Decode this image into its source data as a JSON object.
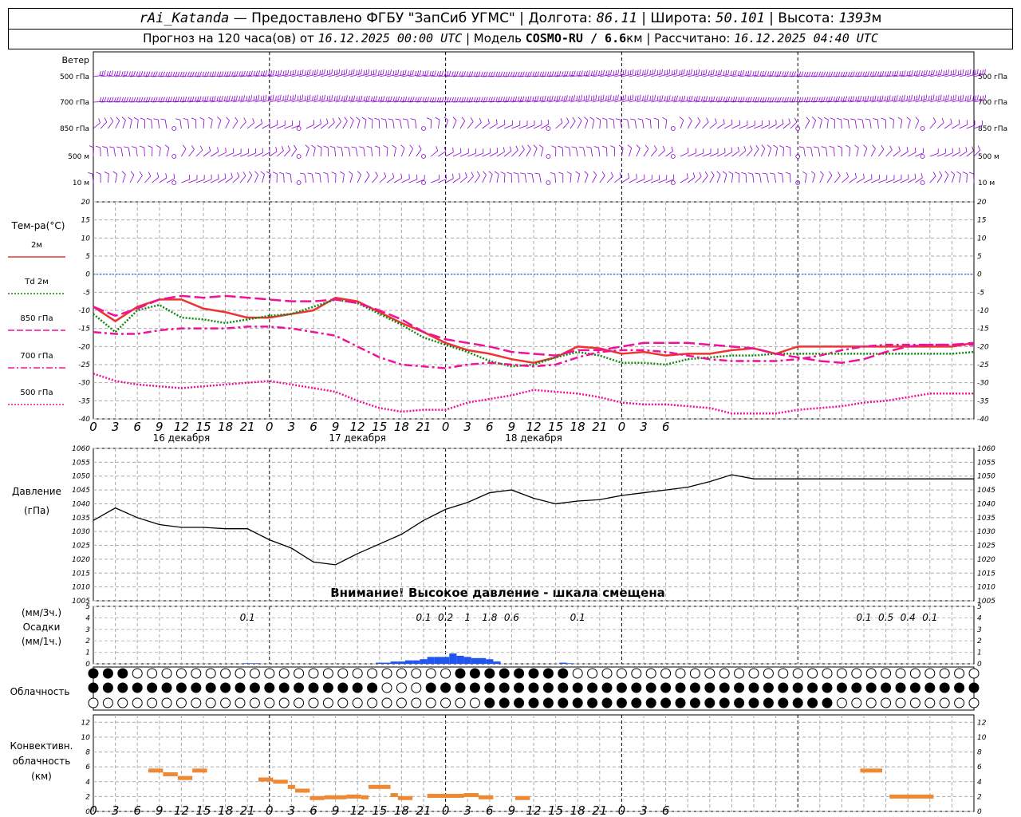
{
  "header": {
    "station": "rAi_Katanda",
    "provider": "— Предоставлено ФГБУ \"ЗапСиб УГМС\" |",
    "lon_label": "Долгота:",
    "lon": "86.11",
    "lat_label": "| Широта:",
    "lat": "50.101",
    "alt_label": "| Высота:",
    "alt": "1393",
    "alt_unit": "м",
    "fc_label": "Прогноз на 120 часа(ов) от",
    "fc_date": "16.12.2025 00:00 UTC",
    "model_label": "| Модель",
    "model": "COSMO-RU / 6.6",
    "model_unit": "км",
    "calc_label": "| Рассчитано:",
    "calc_date": "16.12.2025 04:40 UTC"
  },
  "wind": {
    "title": "Ветер",
    "levels": [
      "500 гПа",
      "700 гПа",
      "850 гПа",
      "500 м",
      "10 м"
    ],
    "color": "#8800cc"
  },
  "x_axis": {
    "hour_labels": [
      "0",
      "3",
      "6",
      "9",
      "12",
      "15",
      "18",
      "21",
      "0",
      "3",
      "6",
      "9",
      "12",
      "15",
      "18",
      "21",
      "0",
      "3",
      "6",
      "9",
      "12",
      "15",
      "18",
      "21",
      "0",
      "3",
      "6"
    ],
    "day_labels": [
      "16 декабря",
      "17 декабря",
      "18 декабря"
    ]
  },
  "temp_panel": {
    "title": "Тем-ра(°С)",
    "legend": [
      "2м",
      "Td  2м",
      "850 гПа",
      "700 гПа",
      "500 гПа"
    ],
    "ylim": [
      -40,
      20
    ],
    "ticks": [
      "20",
      "15",
      "10",
      "5",
      "0",
      "-5",
      "-10",
      "-15",
      "-20",
      "-25",
      "-30",
      "-35",
      "-40"
    ]
  },
  "pressure_panel": {
    "title": "Давление",
    "unit": "(гПа)",
    "ylim": [
      1005,
      1060
    ],
    "ticks": [
      "1060",
      "1055",
      "1050",
      "1045",
      "1040",
      "1035",
      "1030",
      "1025",
      "1020",
      "1015",
      "1010",
      "1005"
    ],
    "warning": "Внимание! Высокое давление - шкала смещена"
  },
  "precip_panel": {
    "unit3h": "(мм/3ч.)",
    "title": "Осадки",
    "unit1h": "(мм/1ч.)",
    "ticks": [
      "5",
      "4",
      "3",
      "2",
      "1",
      "0"
    ],
    "sum_labels": [
      {
        "hour": 21,
        "text": "0.1"
      },
      {
        "hour": 45,
        "text": "0.1"
      },
      {
        "hour": 48,
        "text": "0.2"
      },
      {
        "hour": 51,
        "text": "1"
      },
      {
        "hour": 54,
        "text": "1.8"
      },
      {
        "hour": 57,
        "text": "0.6"
      },
      {
        "hour": 66,
        "text": "0.1"
      },
      {
        "hour": 105,
        "text": "0.1"
      },
      {
        "hour": 108,
        "text": "0.5"
      },
      {
        "hour": 111,
        "text": "0.4"
      },
      {
        "hour": 114,
        "text": "0.1"
      }
    ]
  },
  "cloud_panel": {
    "title": "Облачность"
  },
  "conv_panel": {
    "title1": "Конвективн.",
    "title2": "облачность",
    "unit": "(км)",
    "ticks": [
      "12",
      "10",
      "8",
      "6",
      "4",
      "2",
      "0"
    ]
  },
  "chart_data": [
    {
      "type": "line",
      "name": "temperature",
      "x_unit": "hours from 16.12.2025 00:00 UTC",
      "ylim": [
        -40,
        20
      ],
      "series": [
        {
          "name": "2м",
          "color": "#ee3333",
          "style": "solid",
          "x": [
            0,
            3,
            6,
            9,
            12,
            15,
            18,
            21,
            24,
            27,
            30,
            33,
            36,
            39,
            42,
            45,
            48,
            51,
            54,
            57,
            60,
            63,
            66,
            69,
            72,
            75,
            78,
            81,
            84,
            87,
            90,
            93,
            96,
            99,
            102,
            105,
            108,
            111,
            114,
            117,
            120
          ],
          "y": [
            -9,
            -13,
            -9,
            -7,
            -7,
            -9.5,
            -10.5,
            -12,
            -12,
            -11,
            -10,
            -6.5,
            -7.5,
            -10.5,
            -13.5,
            -16,
            -19,
            -21,
            -22,
            -23.5,
            -24.5,
            -23,
            -20,
            -20.5,
            -22,
            -21.5,
            -22.5,
            -22,
            -22,
            -21,
            -20.5,
            -22,
            -20,
            -20,
            -20,
            -20,
            -20,
            -20,
            -20,
            -20,
            -19
          ]
        },
        {
          "name": "Td  2м",
          "color": "#118811",
          "style": "dotted",
          "x": [
            0,
            3,
            6,
            9,
            12,
            15,
            18,
            21,
            24,
            27,
            30,
            33,
            36,
            39,
            42,
            45,
            48,
            51,
            54,
            57,
            60,
            63,
            66,
            69,
            72,
            75,
            78,
            81,
            84,
            87,
            90,
            93,
            96,
            99,
            102,
            105,
            108,
            111,
            114,
            117,
            120
          ],
          "y": [
            -11,
            -16,
            -10,
            -8.5,
            -12,
            -12.5,
            -13.5,
            -12.5,
            -11.5,
            -11,
            -9,
            -7,
            -8,
            -11,
            -14,
            -17.5,
            -19.5,
            -21.5,
            -24,
            -25.5,
            -25,
            -23,
            -21.5,
            -22.5,
            -24.5,
            -24.5,
            -25,
            -23.5,
            -23,
            -22.5,
            -22.5,
            -22,
            -22,
            -22,
            -22,
            -22,
            -22,
            -22,
            -22,
            -22,
            -21.5
          ]
        },
        {
          "name": "850 гПа",
          "color": "#ee1199",
          "style": "longdash",
          "x": [
            0,
            3,
            6,
            9,
            12,
            15,
            18,
            21,
            24,
            27,
            30,
            33,
            36,
            39,
            42,
            45,
            48,
            51,
            54,
            57,
            60,
            63,
            66,
            69,
            72,
            75,
            78,
            81,
            84,
            87,
            90,
            93,
            96,
            99,
            102,
            105,
            108,
            111,
            114,
            117,
            120
          ],
          "y": [
            -9,
            -11.5,
            -9.5,
            -7,
            -6,
            -6.5,
            -6,
            -6.5,
            -7,
            -7.5,
            -7.5,
            -7,
            -8,
            -10,
            -12.5,
            -16,
            -18,
            -19,
            -20,
            -21.5,
            -22,
            -22.5,
            -21,
            -21,
            -20,
            -19,
            -19,
            -19,
            -19.5,
            -20,
            -20.5,
            -22,
            -23,
            -24,
            -24.5,
            -23.5,
            -21.5,
            -20,
            -19.5,
            -19.5,
            -19
          ]
        },
        {
          "name": "700 гПа",
          "color": "#ee1199",
          "style": "dashdot",
          "x": [
            0,
            3,
            6,
            9,
            12,
            15,
            18,
            21,
            24,
            27,
            30,
            33,
            36,
            39,
            42,
            45,
            48,
            51,
            54,
            57,
            60,
            63,
            66,
            69,
            72,
            75,
            78,
            81,
            84,
            87,
            90,
            93,
            96,
            99,
            102,
            105,
            108,
            111,
            114,
            117,
            120
          ],
          "y": [
            -16,
            -16.5,
            -16.5,
            -15.5,
            -15,
            -15,
            -15,
            -14.5,
            -14.5,
            -15,
            -16,
            -17,
            -20,
            -23,
            -25,
            -25.5,
            -26,
            -25,
            -24.5,
            -25,
            -25.5,
            -25,
            -23,
            -21.5,
            -21,
            -21,
            -21.5,
            -22.5,
            -23.5,
            -24,
            -24,
            -24,
            -23.5,
            -22.5,
            -21,
            -20,
            -19.5,
            -19.5,
            -19.5,
            -19.5,
            -19.5
          ]
        },
        {
          "name": "500 гПа",
          "color": "#ee1199",
          "style": "dotted",
          "x": [
            0,
            3,
            6,
            9,
            12,
            15,
            18,
            21,
            24,
            27,
            30,
            33,
            36,
            39,
            42,
            45,
            48,
            51,
            54,
            57,
            60,
            63,
            66,
            69,
            72,
            75,
            78,
            81,
            84,
            87,
            90,
            93,
            96,
            99,
            102,
            105,
            108,
            111,
            114,
            117,
            120
          ],
          "y": [
            -27.5,
            -29.5,
            -30.5,
            -31,
            -31.5,
            -31,
            -30.5,
            -30,
            -29.5,
            -30.5,
            -31.5,
            -32.5,
            -35,
            -37,
            -38,
            -37.5,
            -37.5,
            -35.5,
            -34.5,
            -33.5,
            -32,
            -32.5,
            -33,
            -34,
            -35.5,
            -36,
            -36,
            -36.5,
            -37,
            -38.5,
            -38.5,
            -38.5,
            -37.5,
            -37,
            -36.5,
            -35.5,
            -35,
            -34,
            -33,
            -33,
            -33
          ]
        }
      ]
    },
    {
      "type": "line",
      "name": "pressure",
      "ylim": [
        1005,
        1060
      ],
      "series": [
        {
          "name": "",
          "color": "#000000",
          "x": [
            0,
            3,
            6,
            9,
            12,
            15,
            18,
            21,
            24,
            27,
            30,
            33,
            36,
            39,
            42,
            45,
            48,
            51,
            54,
            57,
            60,
            63,
            66,
            69,
            72,
            75,
            78,
            81,
            84,
            87,
            90,
            93,
            96,
            99,
            102,
            105,
            108,
            111,
            114,
            117,
            120
          ],
          "y": [
            1034,
            1038.5,
            1035,
            1032.5,
            1031.5,
            1031.5,
            1031,
            1031,
            1027,
            1024,
            1019,
            1018,
            1022,
            1025.5,
            1029,
            1034,
            1038,
            1040.5,
            1044,
            1045,
            1042,
            1040,
            1041,
            1041.5,
            1043,
            1044,
            1045,
            1046,
            1048,
            1050.5,
            1049,
            1049,
            1049,
            1049,
            1049,
            1049,
            1049,
            1049,
            1049,
            1049,
            1049
          ]
        }
      ]
    },
    {
      "type": "bar",
      "name": "precipitation_1h",
      "ylim": [
        0,
        5
      ],
      "color": "#2255ee",
      "x": [
        21,
        22,
        23,
        24,
        25,
        26,
        27,
        28,
        29,
        30,
        31,
        32,
        33,
        34,
        35,
        36,
        37,
        38,
        39,
        40,
        41,
        42,
        43,
        44,
        45,
        46,
        47,
        48,
        49,
        50,
        51,
        52,
        53,
        54,
        55,
        56,
        57,
        58,
        59,
        60,
        61,
        62,
        63,
        64,
        65,
        66,
        67,
        68,
        69,
        70
      ],
      "values": [
        0.05,
        0.05,
        0,
        0,
        0,
        0,
        0,
        0,
        0,
        0,
        0,
        0,
        0,
        0,
        0,
        0,
        0,
        0,
        0.1,
        0.1,
        0.2,
        0.2,
        0.3,
        0.3,
        0.4,
        0.6,
        0.6,
        0.6,
        0.9,
        0.7,
        0.6,
        0.5,
        0.5,
        0.4,
        0.2,
        0,
        0,
        0,
        0,
        0,
        0,
        0,
        0,
        0.1,
        0.05,
        0,
        0,
        0,
        0,
        0
      ]
    },
    {
      "type": "bar",
      "name": "convective_cloud",
      "ylim": [
        0,
        13
      ],
      "color": "#ee8833",
      "segments": [
        {
          "x0": 7.5,
          "x1": 9.5,
          "y": 5.5
        },
        {
          "x0": 9.5,
          "x1": 11.5,
          "y": 5
        },
        {
          "x0": 11.5,
          "x1": 13.5,
          "y": 4.5
        },
        {
          "x0": 13.5,
          "x1": 15.5,
          "y": 5.5
        },
        {
          "x0": 22.5,
          "x1": 24.5,
          "y": 4.3
        },
        {
          "x0": 24.5,
          "x1": 26.5,
          "y": 4
        },
        {
          "x0": 26.5,
          "x1": 27.5,
          "y": 3.3
        },
        {
          "x0": 27.5,
          "x1": 29.5,
          "y": 2.8
        },
        {
          "x0": 29.5,
          "x1": 31.5,
          "y": 1.8
        },
        {
          "x0": 31.5,
          "x1": 34.5,
          "y": 1.9
        },
        {
          "x0": 34.5,
          "x1": 36.5,
          "y": 2
        },
        {
          "x0": 36.5,
          "x1": 37.5,
          "y": 1.9
        },
        {
          "x0": 37.5,
          "x1": 40.5,
          "y": 3.3
        },
        {
          "x0": 40.5,
          "x1": 41.5,
          "y": 2.2
        },
        {
          "x0": 41.5,
          "x1": 43.5,
          "y": 1.8
        },
        {
          "x0": 45.5,
          "x1": 50.5,
          "y": 2.1
        },
        {
          "x0": 50.5,
          "x1": 52.5,
          "y": 2.2
        },
        {
          "x0": 52.5,
          "x1": 54.5,
          "y": 1.9
        },
        {
          "x0": 57.5,
          "x1": 59.5,
          "y": 1.8
        },
        {
          "x0": 104.5,
          "x1": 107.5,
          "y": 5.5
        },
        {
          "x0": 108.5,
          "x1": 114.5,
          "y": 2
        }
      ]
    }
  ]
}
